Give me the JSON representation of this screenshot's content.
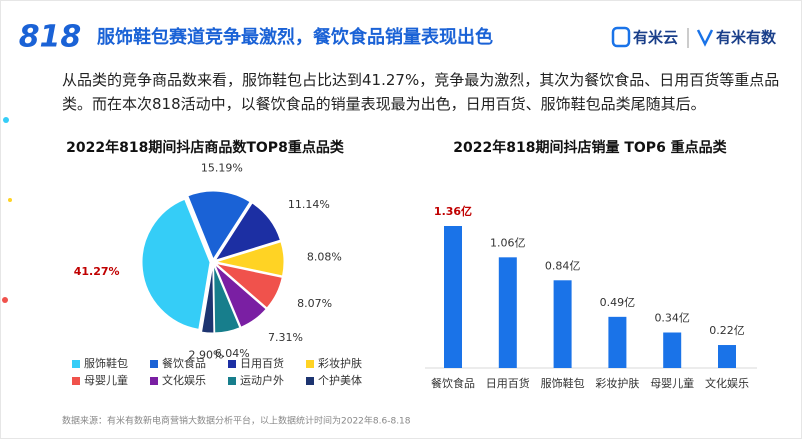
{
  "header": {
    "logo": "818",
    "title": "服饰鞋包赛道竞争最激烈，餐饮食品销量表现出色",
    "brand_1": "有米云",
    "brand_2": "有米有数"
  },
  "intro": "从品类的竞争商品数来看，服饰鞋包占比达到41.27%，竞争最为激烈，其次为餐饮食品、日用百货等重点品类。而在本次818活动中，以餐饮食品的销量表现最为出色，日用百货、服饰鞋包品类尾随其后。",
  "chart_data": [
    {
      "type": "pie",
      "title": "2022年818期间抖店商品数TOP8重点品类",
      "categories": [
        "服饰鞋包",
        "餐饮食品",
        "日用百货",
        "彩妆护肤",
        "母婴儿童",
        "文化娱乐",
        "运动户外",
        "个护美体"
      ],
      "values": [
        41.27,
        15.19,
        11.14,
        8.08,
        8.07,
        7.31,
        6.04,
        2.9
      ],
      "value_labels": [
        "41.27%",
        "15.19%",
        "11.14%",
        "8.08%",
        "8.07%",
        "7.31%",
        "6.04%",
        "2.90%"
      ],
      "colors": [
        "#35cdf7",
        "#1a62d6",
        "#1c2fa3",
        "#ffd324",
        "#f0524c",
        "#7a1fa3",
        "#177e8c",
        "#1d3470"
      ],
      "value_label_colors": [
        "#c00000",
        "#333333",
        "#333333",
        "#333333",
        "#333333",
        "#333333",
        "#333333",
        "#333333"
      ]
    },
    {
      "type": "bar",
      "title": "2022年818期间抖店销量 TOP6 重点品类",
      "categories": [
        "餐饮食品",
        "日用百货",
        "服饰鞋包",
        "彩妆护肤",
        "母婴儿童",
        "文化娱乐"
      ],
      "values": [
        1.36,
        1.06,
        0.84,
        0.49,
        0.34,
        0.22
      ],
      "value_labels": [
        "1.36亿",
        "1.06亿",
        "0.84亿",
        "0.49亿",
        "0.34亿",
        "0.22亿"
      ],
      "color": "#1a73e8",
      "value_label_colors": [
        "#c00000",
        "#333333",
        "#333333",
        "#333333",
        "#333333",
        "#333333"
      ]
    }
  ],
  "source": "数据来源：有米有数新电商营销大数据分析平台，以上数据统计时间为2022年8.6-8.18"
}
